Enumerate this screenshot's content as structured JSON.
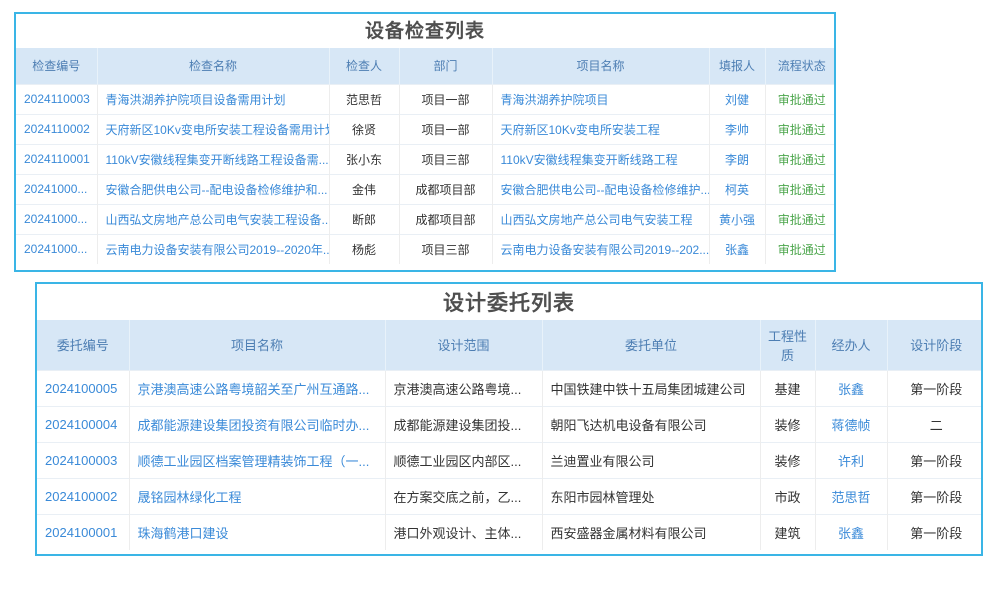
{
  "colors": {
    "accent_border": "#3ab5e6",
    "header_bg": "#d7e7f6",
    "header_text": "#4d7eb3",
    "link": "#3a8ad8",
    "status_green": "#4ca64c",
    "text_dark": "#333333",
    "title_text": "#4f4f4f",
    "row_divider": "#e9eff5",
    "col_divider": "#ededed"
  },
  "equipment_table": {
    "title": "设备检查列表",
    "columns": [
      {
        "label": "检查编号",
        "align": "left",
        "type": "link"
      },
      {
        "label": "检查名称",
        "align": "left",
        "type": "link"
      },
      {
        "label": "检查人",
        "align": "center",
        "type": "text"
      },
      {
        "label": "部门",
        "align": "center",
        "type": "text"
      },
      {
        "label": "项目名称",
        "align": "left",
        "type": "link"
      },
      {
        "label": "填报人",
        "align": "center",
        "type": "link"
      },
      {
        "label": "流程状态",
        "align": "center",
        "type": "status"
      }
    ],
    "rows": [
      [
        "2024110003",
        "青海洪湖养护院项目设备需用计划",
        "范思哲",
        "项目一部",
        "青海洪湖养护院项目",
        "刘健",
        "审批通过"
      ],
      [
        "2024110002",
        "天府新区10Kv变电所安装工程设备需用计划",
        "徐贤",
        "项目一部",
        "天府新区10Kv变电所安装工程",
        "李帅",
        "审批通过"
      ],
      [
        "2024110001",
        "110kV安徽线程集变开断线路工程设备需...",
        "张小东",
        "项目三部",
        "110kV安徽线程集变开断线路工程",
        "李朗",
        "审批通过"
      ],
      [
        "20241000...",
        "安徽合肥供电公司--配电设备检修维护和...",
        "金伟",
        "成都项目部",
        "安徽合肥供电公司--配电设备检修维护...",
        "柯英",
        "审批通过"
      ],
      [
        "20241000...",
        "山西弘文房地产总公司电气安装工程设备...",
        "断郎",
        "成都项目部",
        "山西弘文房地产总公司电气安装工程",
        "黄小强",
        "审批通过"
      ],
      [
        "20241000...",
        "云南电力设备安装有限公司2019--2020年...",
        "杨彪",
        "项目三部",
        "云南电力设备安装有限公司2019--202...",
        "张鑫",
        "审批通过"
      ]
    ]
  },
  "design_table": {
    "title": "设计委托列表",
    "columns": [
      {
        "label": "委托编号",
        "align": "left",
        "type": "link"
      },
      {
        "label": "项目名称",
        "align": "left",
        "type": "link"
      },
      {
        "label": "设计范围",
        "align": "left",
        "type": "text"
      },
      {
        "label": "委托单位",
        "align": "left",
        "type": "text"
      },
      {
        "label": "工程性质",
        "align": "center",
        "type": "text"
      },
      {
        "label": "经办人",
        "align": "center",
        "type": "link"
      },
      {
        "label": "设计阶段",
        "align": "center",
        "type": "text"
      }
    ],
    "rows": [
      [
        "2024100005",
        "京港澳高速公路粤境韶关至广州互通路...",
        "京港澳高速公路粤境...",
        "中国铁建中铁十五局集团城建公司",
        "基建",
        "张鑫",
        "第一阶段"
      ],
      [
        "2024100004",
        "成都能源建设集团投资有限公司临时办...",
        "成都能源建设集团投...",
        "朝阳飞达机电设备有限公司",
        "装修",
        "蒋德帧",
        "二"
      ],
      [
        "2024100003",
        "顺德工业园区档案管理精装饰工程（一...",
        "顺德工业园区内部区...",
        "兰迪置业有限公司",
        "装修",
        "许利",
        "第一阶段"
      ],
      [
        "2024100002",
        "晟铭园林绿化工程",
        "在方案交底之前，乙...",
        "东阳市园林管理处",
        "市政",
        "范思哲",
        "第一阶段"
      ],
      [
        "2024100001",
        "珠海鹤港口建设",
        "港口外观设计、主体...",
        "西安盛器金属材料有限公司",
        "建筑",
        "张鑫",
        "第一阶段"
      ]
    ]
  }
}
